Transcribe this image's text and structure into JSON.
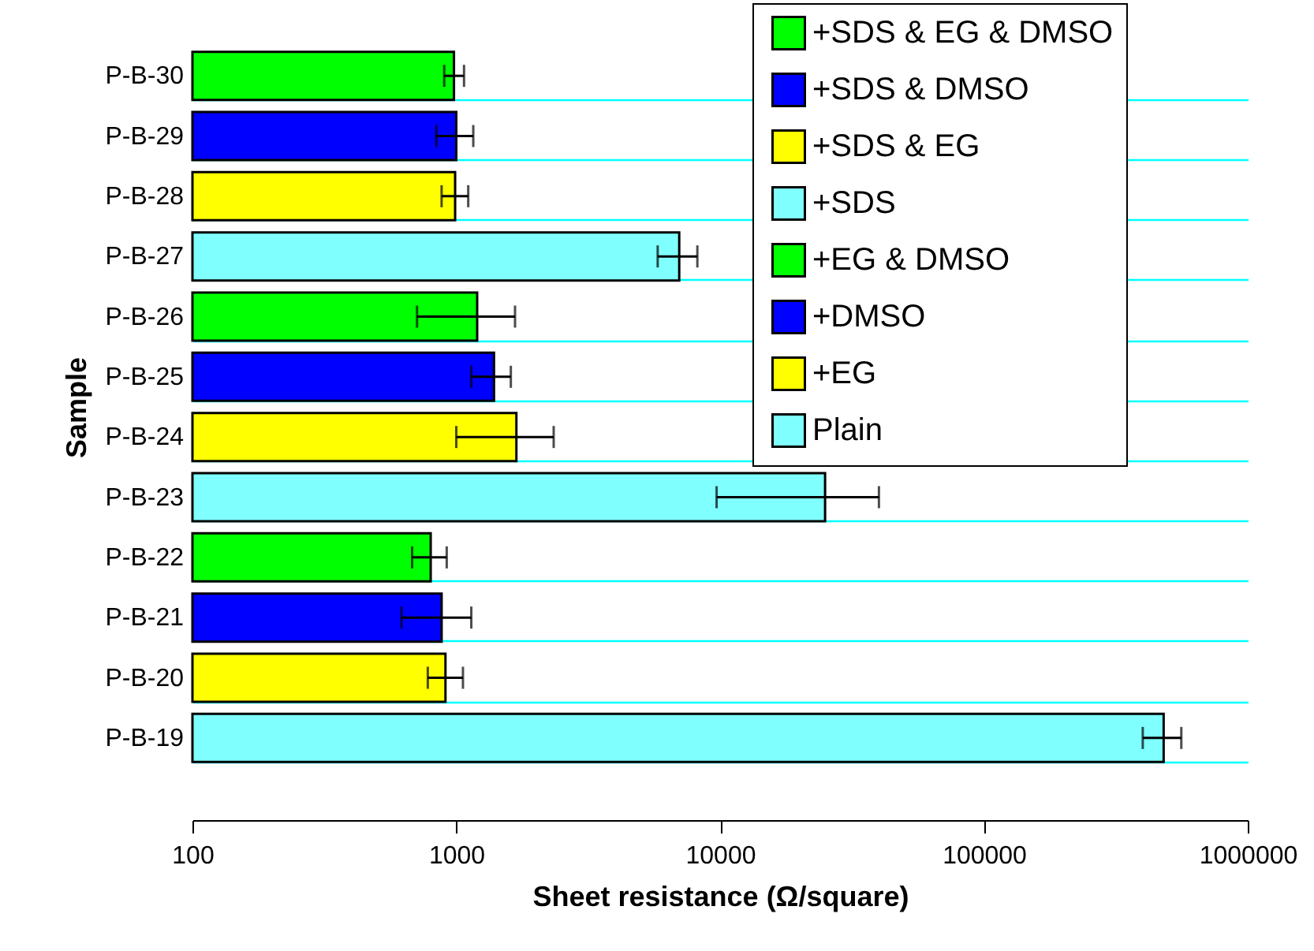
{
  "chart_data": {
    "type": "bar",
    "orientation": "horizontal",
    "log": "x",
    "grid": "y",
    "legend": "top right",
    "xlabel": "Sheet resistance (Ω/square)",
    "ylabel": "Sample",
    "categories": [
      "P-B-30",
      "P-B-29",
      "P-B-28",
      "P-B-27",
      "P-B-26",
      "P-B-25",
      "P-B-24",
      "P-B-23",
      "P-B-22",
      "P-B-21",
      "P-B-20",
      "P-B-19"
    ],
    "xlim": [
      100,
      1000000
    ],
    "xticks": [
      100,
      1000,
      10000,
      100000,
      1000000
    ],
    "series": [
      {
        "name": "+SDS & EG & DMSO",
        "color": "#00ff00",
        "values": [
          980,
          null,
          null,
          null,
          1200,
          null,
          null,
          null,
          null,
          null,
          null,
          null
        ],
        "errors": [
          [
            900,
            1070
          ],
          null,
          null,
          null,
          [
            710,
            1670
          ],
          null,
          null,
          null,
          null,
          null,
          null,
          null
        ]
      },
      {
        "name": "+SDS & DMSO",
        "color": "#0000ff",
        "values": [
          null,
          1000,
          null,
          null,
          null,
          1390,
          null,
          null,
          null,
          null,
          null,
          null
        ],
        "errors": [
          null,
          [
            840,
            1160
          ],
          null,
          null,
          null,
          [
            1140,
            1610
          ],
          null,
          null,
          null,
          null,
          null,
          null
        ]
      },
      {
        "name": "+SDS & EG",
        "color": "#ffff00",
        "values": [
          null,
          null,
          990,
          null,
          null,
          null,
          1690,
          null,
          null,
          null,
          null,
          null
        ],
        "errors": [
          null,
          null,
          [
            880,
            1110
          ],
          null,
          null,
          null,
          [
            1000,
            2340
          ],
          null,
          null,
          null,
          null,
          null
        ]
      },
      {
        "name": "+SDS",
        "color": "#80ffff",
        "values": [
          null,
          null,
          null,
          7000,
          null,
          null,
          null,
          25000,
          null,
          null,
          null,
          null
        ],
        "errors": [
          null,
          null,
          null,
          [
            5800,
            8200
          ],
          null,
          null,
          null,
          [
            9700,
            40000
          ],
          null,
          null,
          null,
          null
        ]
      },
      {
        "name": "+EG & DMSO",
        "color": "#00ff00",
        "values": [
          null,
          null,
          null,
          null,
          null,
          null,
          null,
          null,
          800,
          null,
          null,
          null
        ],
        "errors": [
          null,
          null,
          null,
          null,
          null,
          null,
          null,
          null,
          [
            680,
            920
          ],
          null,
          null,
          null
        ]
      },
      {
        "name": "+DMSO",
        "color": "#0000ff",
        "values": [
          null,
          null,
          null,
          null,
          null,
          null,
          null,
          null,
          null,
          880,
          null,
          null
        ],
        "errors": [
          null,
          null,
          null,
          null,
          null,
          null,
          null,
          null,
          null,
          [
            620,
            1140
          ],
          null,
          null
        ]
      },
      {
        "name": "+EG",
        "color": "#ffff00",
        "values": [
          null,
          null,
          null,
          null,
          null,
          null,
          null,
          null,
          null,
          null,
          910,
          null
        ],
        "errors": [
          null,
          null,
          null,
          null,
          null,
          null,
          null,
          null,
          null,
          null,
          [
            780,
            1060
          ],
          null
        ]
      },
      {
        "name": "Plain",
        "color": "#80ffff",
        "values": [
          null,
          null,
          null,
          null,
          null,
          null,
          null,
          null,
          null,
          null,
          null,
          480000
        ],
        "errors": [
          null,
          null,
          null,
          null,
          null,
          null,
          null,
          null,
          null,
          null,
          null,
          [
            400000,
            560000
          ]
        ]
      }
    ]
  }
}
